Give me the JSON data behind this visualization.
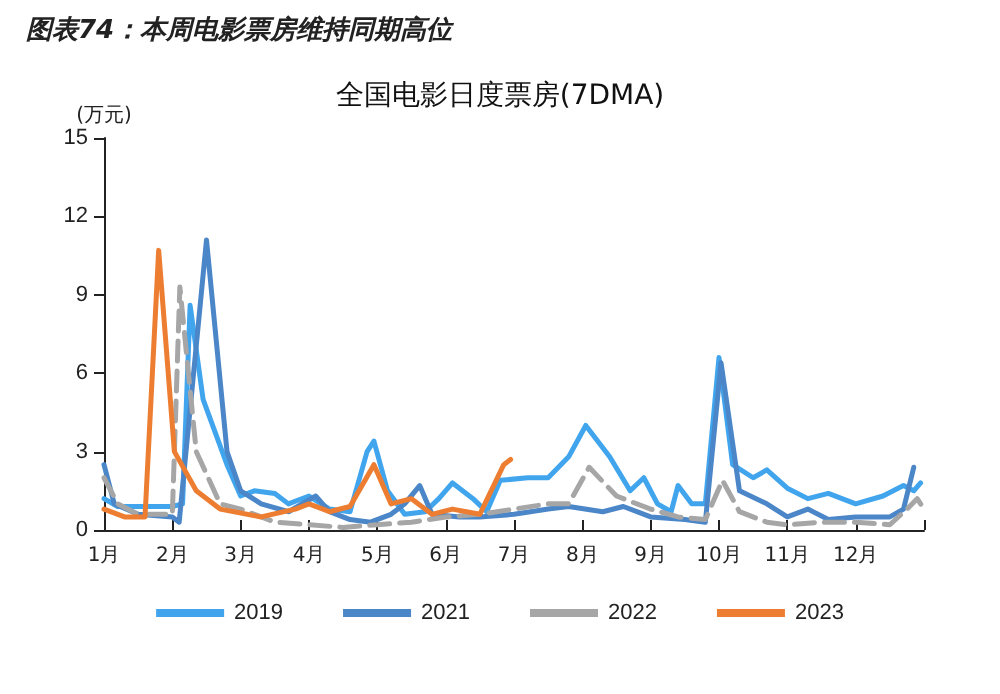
{
  "chart_data": {
    "type": "line",
    "title": "图表74：本周电影票房维持同期高位",
    "subtitle": "全国电影日度票房(7DMA)",
    "ylabel": "(万元)",
    "xlim": [
      1,
      13
    ],
    "xticks": [
      {
        "value": 1,
        "label": "1月"
      },
      {
        "value": 2,
        "label": "2月"
      },
      {
        "value": 3,
        "label": "3月"
      },
      {
        "value": 4,
        "label": "4月"
      },
      {
        "value": 5,
        "label": "5月"
      },
      {
        "value": 6,
        "label": "6月"
      },
      {
        "value": 7,
        "label": "7月"
      },
      {
        "value": 8,
        "label": "8月"
      },
      {
        "value": 9,
        "label": "9月"
      },
      {
        "value": 10,
        "label": "10月"
      },
      {
        "value": 11,
        "label": "11月"
      },
      {
        "value": 12,
        "label": "12月"
      },
      {
        "value": 13,
        "label": null
      }
    ],
    "ylim": [
      0,
      15
    ],
    "yticks": [
      0,
      3,
      6,
      9,
      12,
      15
    ],
    "grid": false,
    "legend": "bottom",
    "marker": "none",
    "series": [
      {
        "name": "2019",
        "color": "#41a5ee",
        "line_style": "solid",
        "x": [
          1.0,
          1.2,
          2.0,
          2.15,
          2.26,
          2.45,
          2.8,
          3.0,
          3.2,
          3.5,
          3.7,
          4.0,
          4.3,
          4.6,
          4.85,
          4.95,
          5.15,
          5.4,
          5.7,
          5.9,
          6.1,
          6.4,
          6.6,
          6.8,
          7.2,
          7.5,
          7.8,
          8.05,
          8.4,
          8.7,
          8.9,
          9.1,
          9.3,
          9.4,
          9.6,
          9.8,
          10.0,
          10.2,
          10.5,
          10.7,
          11.0,
          11.3,
          11.6,
          12.0,
          12.4,
          12.7,
          12.85,
          12.95
        ],
        "values": [
          1.2,
          0.9,
          0.9,
          1.0,
          8.6,
          5.0,
          2.5,
          1.3,
          1.5,
          1.4,
          1.0,
          1.3,
          0.8,
          0.7,
          3.0,
          3.4,
          1.5,
          0.6,
          0.7,
          1.2,
          1.8,
          1.2,
          0.7,
          1.9,
          2.0,
          2.0,
          2.8,
          4.0,
          2.8,
          1.5,
          2.0,
          1.0,
          0.7,
          1.7,
          1.0,
          1.0,
          6.6,
          2.5,
          2.0,
          2.3,
          1.6,
          1.2,
          1.4,
          1.0,
          1.3,
          1.7,
          1.5,
          1.8
        ]
      },
      {
        "name": "2021",
        "color": "#4a86c8",
        "line_style": "solid",
        "x": [
          1.0,
          1.15,
          1.5,
          2.0,
          2.1,
          2.5,
          2.8,
          3.0,
          3.3,
          3.7,
          4.1,
          4.3,
          4.6,
          4.9,
          5.2,
          5.4,
          5.62,
          5.8,
          6.2,
          6.5,
          7.0,
          7.5,
          7.8,
          8.3,
          8.6,
          9.0,
          9.5,
          9.8,
          10.03,
          10.3,
          10.7,
          11.0,
          11.3,
          11.6,
          12.0,
          12.5,
          12.7,
          12.85
        ],
        "values": [
          2.5,
          1.0,
          0.6,
          0.5,
          0.3,
          11.1,
          3.0,
          1.5,
          1.0,
          0.7,
          1.3,
          0.7,
          0.4,
          0.3,
          0.6,
          1.0,
          1.7,
          0.6,
          0.5,
          0.5,
          0.6,
          0.8,
          0.9,
          0.7,
          0.9,
          0.5,
          0.4,
          0.3,
          6.4,
          1.5,
          1.0,
          0.5,
          0.8,
          0.4,
          0.5,
          0.5,
          0.8,
          2.4
        ]
      },
      {
        "name": "2022",
        "color": "#a6a6a6",
        "line_style": "dashed",
        "x": [
          1.0,
          1.2,
          1.5,
          2.0,
          2.11,
          2.35,
          2.7,
          3.0,
          3.5,
          4.0,
          4.5,
          5.0,
          5.5,
          6.0,
          6.5,
          7.0,
          7.5,
          7.8,
          8.1,
          8.5,
          9.0,
          9.4,
          9.8,
          10.05,
          10.3,
          10.7,
          11.0,
          11.5,
          12.0,
          12.5,
          12.75,
          12.9,
          13.0
        ],
        "values": [
          2.0,
          1.0,
          0.6,
          0.6,
          9.3,
          3.0,
          1.0,
          0.8,
          0.3,
          0.2,
          0.1,
          0.2,
          0.3,
          0.5,
          0.6,
          0.8,
          1.0,
          1.0,
          2.4,
          1.3,
          0.8,
          0.5,
          0.4,
          1.9,
          0.7,
          0.3,
          0.2,
          0.3,
          0.3,
          0.2,
          0.8,
          1.2,
          0.8
        ]
      },
      {
        "name": "2023",
        "color": "#ed7d31",
        "line_style": "solid",
        "x": [
          1.0,
          1.3,
          1.6,
          1.8,
          2.03,
          2.35,
          2.7,
          3.3,
          3.8,
          4.0,
          4.3,
          4.6,
          4.95,
          5.2,
          5.5,
          5.8,
          6.1,
          6.5,
          6.85,
          6.95
        ],
        "values": [
          0.8,
          0.5,
          0.5,
          10.7,
          3.0,
          1.5,
          0.8,
          0.5,
          0.8,
          1.0,
          0.7,
          0.9,
          2.5,
          1.0,
          1.2,
          0.6,
          0.8,
          0.6,
          2.5,
          2.7
        ]
      }
    ]
  }
}
